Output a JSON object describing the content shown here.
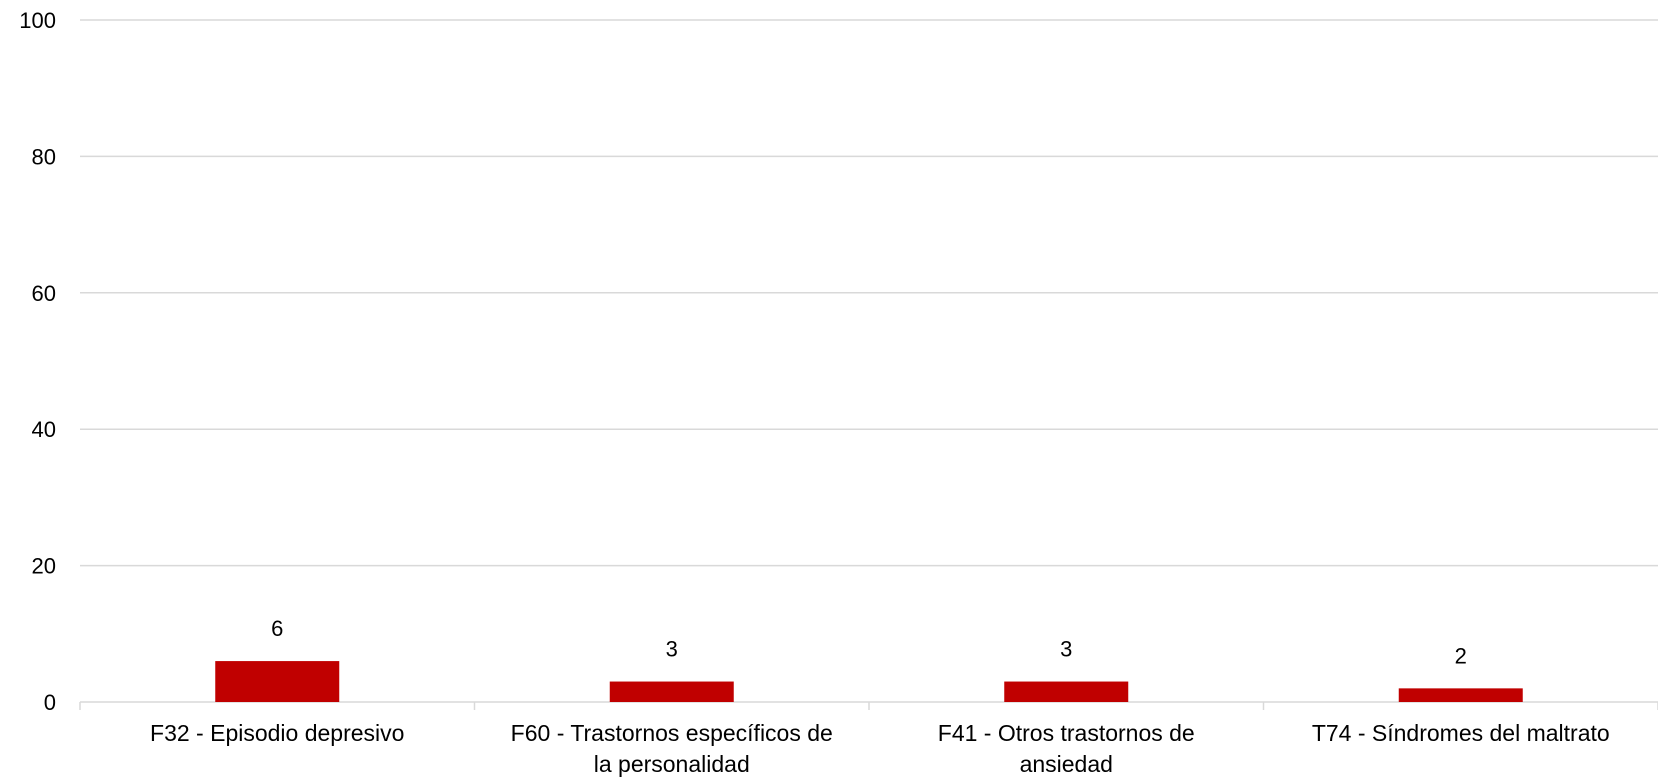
{
  "chart_data": {
    "type": "bar",
    "categories": [
      [
        "F32  - Episodio depresivo"
      ],
      [
        "F60  - Trastornos específicos de",
        "la personalidad"
      ],
      [
        "F41  - Otros trastornos de",
        "ansiedad"
      ],
      [
        "T74  - Síndromes del maltrato"
      ]
    ],
    "values": [
      6,
      3,
      3,
      2
    ],
    "data_labels": [
      "6",
      "3",
      "3",
      "2"
    ],
    "yticks": [
      "0",
      "20",
      "40",
      "60",
      "80",
      "100"
    ],
    "ylim": [
      0,
      100
    ],
    "grid": true,
    "legend": "none",
    "colors": {
      "bar": "#C00000",
      "grid": "#D9D9D9",
      "axis": "#D9D9D9"
    }
  }
}
